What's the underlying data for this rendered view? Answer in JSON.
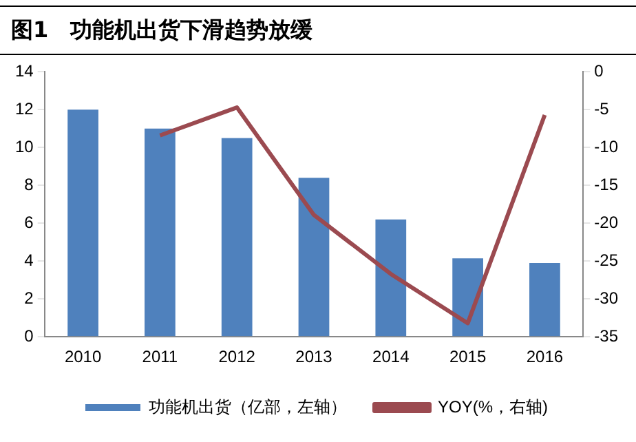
{
  "chart_data": {
    "type": "bar",
    "title": "图1　功能机出货下滑趋势放缓",
    "categories": [
      "2010",
      "2011",
      "2012",
      "2013",
      "2014",
      "2015",
      "2016"
    ],
    "series": [
      {
        "name": "功能机出货（亿部，左轴）",
        "color": "#4f81bd",
        "values": [
          12,
          11,
          10.5,
          8.4,
          6.2,
          4.15,
          3.9
        ]
      },
      {
        "name": "YOY(%，右轴)",
        "type": "line",
        "axis": "y2",
        "color": "#9b4a50",
        "values": [
          null,
          -8.4,
          -4.7,
          -18.9,
          -26.7,
          -33.2,
          -5.7
        ]
      }
    ],
    "ylim": [
      0,
      14
    ],
    "yticks": [
      0,
      2,
      4,
      6,
      8,
      10,
      12,
      14
    ],
    "y2lim": [
      -35,
      0
    ],
    "y2ticks": [
      -35,
      -30,
      -25,
      -20,
      -15,
      -10,
      -5,
      0
    ],
    "grid": false,
    "legend": "bottom",
    "marker": "none"
  }
}
